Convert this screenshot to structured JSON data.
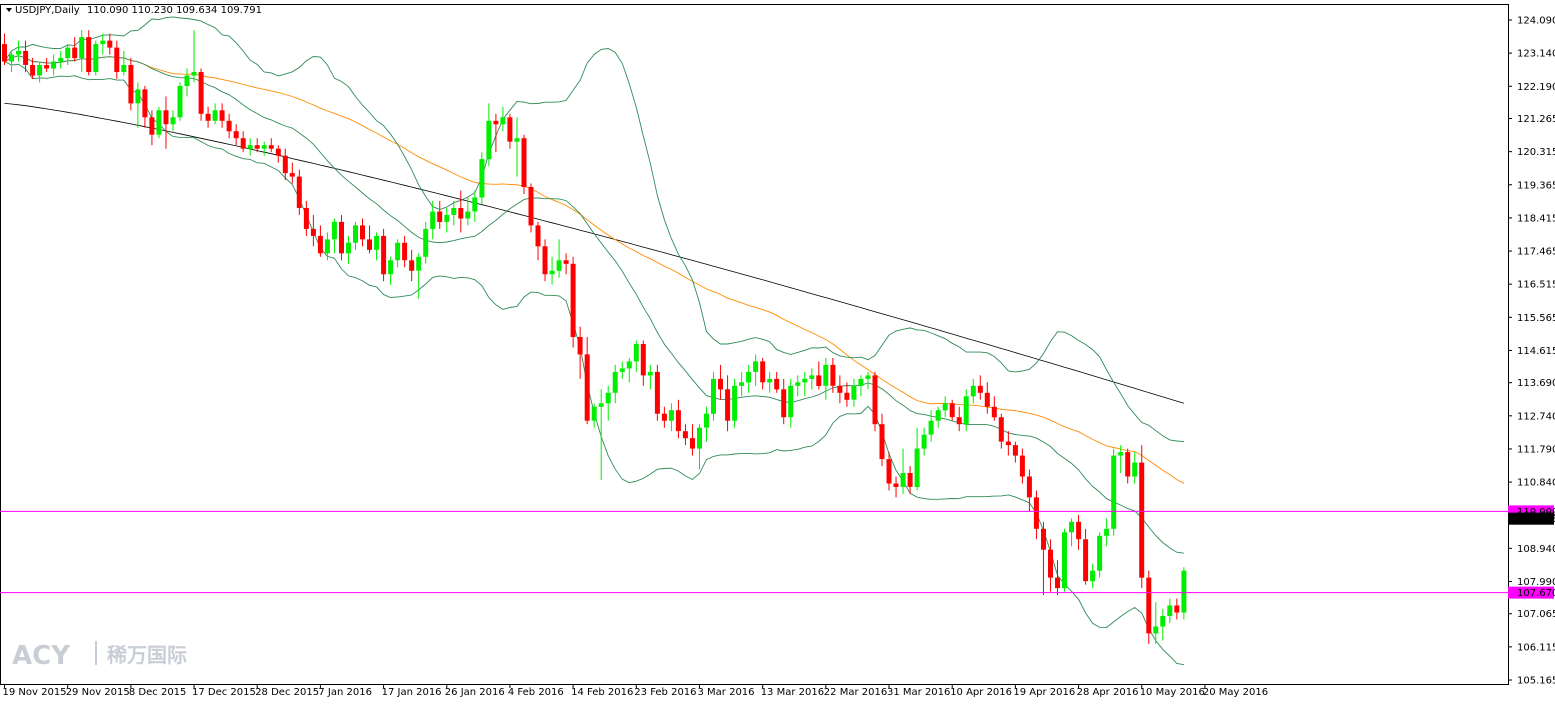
{
  "header": {
    "symbol": "USDJPY,Daily",
    "ohlc": "110.090 110.230 109.634 109.791"
  },
  "watermark": {
    "brand": "ACY",
    "cn": "稀万国际"
  },
  "chart_data": {
    "type": "candlestick",
    "symbol": "USDJPY",
    "timeframe": "Daily",
    "ylim": [
      105.165,
      124.09
    ],
    "y_ticks": [
      "124.090",
      "123.140",
      "122.190",
      "121.265",
      "120.315",
      "119.365",
      "118.415",
      "117.465",
      "116.515",
      "115.565",
      "114.615",
      "113.690",
      "112.740",
      "111.790",
      "110.840",
      "109.890",
      "108.940",
      "107.990",
      "107.065",
      "106.115",
      "105.165"
    ],
    "x_ticks": [
      "19 Nov 2015",
      "29 Nov 2015",
      "8 Dec 2015",
      "17 Dec 2015",
      "28 Dec 2015",
      "7 Jan 2016",
      "17 Jan 2016",
      "26 Jan 2016",
      "4 Feb 2016",
      "14 Feb 2016",
      "23 Feb 2016",
      "3 Mar 2016",
      "13 Mar 2016",
      "22 Mar 2016",
      "31 Mar 2016",
      "10 Apr 2016",
      "19 Apr 2016",
      "28 Apr 2016",
      "10 May 2016",
      "20 May 2016"
    ],
    "x_tick_bar_index": [
      0,
      9,
      18,
      27,
      36,
      45,
      54,
      63,
      72,
      81,
      90,
      99,
      108,
      117,
      126,
      135,
      144,
      153,
      162,
      171
    ],
    "colors": {
      "up": "#00ee00",
      "down": "#ff0000",
      "bands": "#2e8b57",
      "ma50": "#ff8c00",
      "ma200": "#000000",
      "hline": "#ff00ff",
      "price_label": "#000000"
    },
    "horizontal_lines": [
      {
        "value": 110.0,
        "label": "110.000"
      },
      {
        "value": 107.67,
        "label": "107.670"
      }
    ],
    "current_price": {
      "value": 109.791,
      "label": "109.791"
    },
    "candles": [
      {
        "o": 123.4,
        "h": 123.7,
        "l": 122.8,
        "c": 122.9
      },
      {
        "o": 122.9,
        "h": 123.2,
        "l": 122.6,
        "c": 123.1
      },
      {
        "o": 123.1,
        "h": 123.5,
        "l": 122.9,
        "c": 123.2
      },
      {
        "o": 123.2,
        "h": 123.5,
        "l": 122.6,
        "c": 122.8
      },
      {
        "o": 122.8,
        "h": 123.0,
        "l": 122.4,
        "c": 122.5
      },
      {
        "o": 122.5,
        "h": 122.9,
        "l": 122.3,
        "c": 122.8
      },
      {
        "o": 122.8,
        "h": 123.0,
        "l": 122.6,
        "c": 122.7
      },
      {
        "o": 122.7,
        "h": 123.1,
        "l": 122.5,
        "c": 122.9
      },
      {
        "o": 122.9,
        "h": 123.2,
        "l": 122.7,
        "c": 123.0
      },
      {
        "o": 123.0,
        "h": 123.4,
        "l": 122.8,
        "c": 123.3
      },
      {
        "o": 123.3,
        "h": 123.6,
        "l": 122.9,
        "c": 123.0
      },
      {
        "o": 123.0,
        "h": 123.8,
        "l": 122.6,
        "c": 123.6
      },
      {
        "o": 123.6,
        "h": 123.8,
        "l": 122.5,
        "c": 122.6
      },
      {
        "o": 122.6,
        "h": 123.5,
        "l": 122.5,
        "c": 123.4
      },
      {
        "o": 123.4,
        "h": 123.7,
        "l": 123.1,
        "c": 123.5
      },
      {
        "o": 123.5,
        "h": 123.7,
        "l": 123.1,
        "c": 123.3
      },
      {
        "o": 123.3,
        "h": 123.5,
        "l": 122.4,
        "c": 122.6
      },
      {
        "o": 122.6,
        "h": 123.2,
        "l": 122.5,
        "c": 122.8
      },
      {
        "o": 122.8,
        "h": 123.0,
        "l": 121.5,
        "c": 121.7
      },
      {
        "o": 121.7,
        "h": 122.3,
        "l": 121.0,
        "c": 122.1
      },
      {
        "o": 122.1,
        "h": 122.2,
        "l": 121.0,
        "c": 121.3
      },
      {
        "o": 121.3,
        "h": 121.5,
        "l": 120.5,
        "c": 120.8
      },
      {
        "o": 120.8,
        "h": 121.6,
        "l": 120.7,
        "c": 121.5
      },
      {
        "o": 121.5,
        "h": 121.9,
        "l": 120.4,
        "c": 121.1
      },
      {
        "o": 121.1,
        "h": 121.5,
        "l": 120.9,
        "c": 121.3
      },
      {
        "o": 121.3,
        "h": 122.3,
        "l": 121.2,
        "c": 122.2
      },
      {
        "o": 122.2,
        "h": 122.7,
        "l": 121.9,
        "c": 122.5
      },
      {
        "o": 122.5,
        "h": 123.8,
        "l": 122.3,
        "c": 122.6
      },
      {
        "o": 122.6,
        "h": 122.7,
        "l": 121.2,
        "c": 121.4
      },
      {
        "o": 121.4,
        "h": 121.6,
        "l": 121.0,
        "c": 121.2
      },
      {
        "o": 121.2,
        "h": 121.7,
        "l": 121.1,
        "c": 121.5
      },
      {
        "o": 121.5,
        "h": 121.7,
        "l": 121.0,
        "c": 121.2
      },
      {
        "o": 121.2,
        "h": 121.4,
        "l": 120.7,
        "c": 120.9
      },
      {
        "o": 120.9,
        "h": 121.1,
        "l": 120.5,
        "c": 120.7
      },
      {
        "o": 120.7,
        "h": 120.9,
        "l": 120.3,
        "c": 120.4
      },
      {
        "o": 120.4,
        "h": 120.7,
        "l": 120.2,
        "c": 120.5
      },
      {
        "o": 120.5,
        "h": 120.7,
        "l": 120.3,
        "c": 120.4
      },
      {
        "o": 120.4,
        "h": 120.6,
        "l": 120.2,
        "c": 120.5
      },
      {
        "o": 120.5,
        "h": 120.7,
        "l": 120.3,
        "c": 120.4
      },
      {
        "o": 120.4,
        "h": 120.5,
        "l": 120.0,
        "c": 120.2
      },
      {
        "o": 120.2,
        "h": 120.4,
        "l": 119.5,
        "c": 119.7
      },
      {
        "o": 119.7,
        "h": 120.0,
        "l": 119.4,
        "c": 119.6
      },
      {
        "o": 119.6,
        "h": 119.8,
        "l": 118.5,
        "c": 118.7
      },
      {
        "o": 118.7,
        "h": 118.9,
        "l": 117.9,
        "c": 118.1
      },
      {
        "o": 118.1,
        "h": 118.5,
        "l": 117.6,
        "c": 117.9
      },
      {
        "o": 117.9,
        "h": 118.2,
        "l": 117.3,
        "c": 117.4
      },
      {
        "o": 117.4,
        "h": 118.0,
        "l": 117.2,
        "c": 117.8
      },
      {
        "o": 117.8,
        "h": 118.4,
        "l": 117.4,
        "c": 118.3
      },
      {
        "o": 118.3,
        "h": 118.5,
        "l": 117.2,
        "c": 117.4
      },
      {
        "o": 117.4,
        "h": 117.9,
        "l": 117.1,
        "c": 117.7
      },
      {
        "o": 117.7,
        "h": 118.3,
        "l": 117.5,
        "c": 118.2
      },
      {
        "o": 118.2,
        "h": 118.4,
        "l": 117.6,
        "c": 117.8
      },
      {
        "o": 117.8,
        "h": 118.2,
        "l": 117.4,
        "c": 117.5
      },
      {
        "o": 117.5,
        "h": 118.0,
        "l": 117.2,
        "c": 117.9
      },
      {
        "o": 117.9,
        "h": 118.1,
        "l": 116.6,
        "c": 116.8
      },
      {
        "o": 116.8,
        "h": 117.3,
        "l": 116.5,
        "c": 117.2
      },
      {
        "o": 117.2,
        "h": 117.8,
        "l": 117.0,
        "c": 117.7
      },
      {
        "o": 117.7,
        "h": 117.9,
        "l": 117.0,
        "c": 117.2
      },
      {
        "o": 117.2,
        "h": 117.5,
        "l": 116.6,
        "c": 116.9
      },
      {
        "o": 116.9,
        "h": 117.4,
        "l": 116.1,
        "c": 117.3
      },
      {
        "o": 117.3,
        "h": 118.3,
        "l": 117.1,
        "c": 118.1
      },
      {
        "o": 118.1,
        "h": 118.9,
        "l": 117.8,
        "c": 118.6
      },
      {
        "o": 118.6,
        "h": 118.9,
        "l": 118.1,
        "c": 118.3
      },
      {
        "o": 118.3,
        "h": 118.7,
        "l": 118.0,
        "c": 118.5
      },
      {
        "o": 118.5,
        "h": 118.9,
        "l": 118.2,
        "c": 118.7
      },
      {
        "o": 118.7,
        "h": 119.2,
        "l": 118.0,
        "c": 118.4
      },
      {
        "o": 118.4,
        "h": 119.0,
        "l": 118.2,
        "c": 118.6
      },
      {
        "o": 118.6,
        "h": 119.2,
        "l": 118.3,
        "c": 119.0
      },
      {
        "o": 119.0,
        "h": 120.3,
        "l": 118.8,
        "c": 120.1
      },
      {
        "o": 120.1,
        "h": 121.7,
        "l": 119.9,
        "c": 121.2
      },
      {
        "o": 121.2,
        "h": 121.4,
        "l": 120.3,
        "c": 121.1
      },
      {
        "o": 121.1,
        "h": 121.6,
        "l": 120.9,
        "c": 121.3
      },
      {
        "o": 121.3,
        "h": 121.4,
        "l": 120.4,
        "c": 120.6
      },
      {
        "o": 120.6,
        "h": 121.3,
        "l": 119.6,
        "c": 120.7
      },
      {
        "o": 120.7,
        "h": 120.8,
        "l": 119.1,
        "c": 119.3
      },
      {
        "o": 119.3,
        "h": 119.4,
        "l": 118.0,
        "c": 118.2
      },
      {
        "o": 118.2,
        "h": 118.3,
        "l": 117.2,
        "c": 117.6
      },
      {
        "o": 117.6,
        "h": 117.8,
        "l": 116.6,
        "c": 116.8
      },
      {
        "o": 116.8,
        "h": 117.3,
        "l": 116.5,
        "c": 116.9
      },
      {
        "o": 116.9,
        "h": 117.8,
        "l": 116.7,
        "c": 117.2
      },
      {
        "o": 117.2,
        "h": 117.4,
        "l": 116.8,
        "c": 117.1
      },
      {
        "o": 117.1,
        "h": 117.3,
        "l": 114.7,
        "c": 115.0
      },
      {
        "o": 115.0,
        "h": 115.3,
        "l": 113.8,
        "c": 114.5
      },
      {
        "o": 114.5,
        "h": 115.0,
        "l": 112.5,
        "c": 112.6
      },
      {
        "o": 112.6,
        "h": 113.1,
        "l": 112.4,
        "c": 113.0
      },
      {
        "o": 113.0,
        "h": 113.5,
        "l": 110.9,
        "c": 113.1
      },
      {
        "o": 113.1,
        "h": 113.6,
        "l": 112.6,
        "c": 113.4
      },
      {
        "o": 113.4,
        "h": 114.2,
        "l": 113.1,
        "c": 114.0
      },
      {
        "o": 114.0,
        "h": 114.3,
        "l": 113.8,
        "c": 114.1
      },
      {
        "o": 114.1,
        "h": 114.4,
        "l": 113.7,
        "c": 114.3
      },
      {
        "o": 114.3,
        "h": 114.9,
        "l": 114.0,
        "c": 114.8
      },
      {
        "o": 114.8,
        "h": 114.9,
        "l": 113.6,
        "c": 113.9
      },
      {
        "o": 113.9,
        "h": 114.2,
        "l": 113.5,
        "c": 114.0
      },
      {
        "o": 114.0,
        "h": 114.2,
        "l": 112.6,
        "c": 112.8
      },
      {
        "o": 112.8,
        "h": 113.0,
        "l": 112.4,
        "c": 112.6
      },
      {
        "o": 112.6,
        "h": 113.1,
        "l": 112.3,
        "c": 112.9
      },
      {
        "o": 112.9,
        "h": 113.2,
        "l": 112.1,
        "c": 112.3
      },
      {
        "o": 112.3,
        "h": 112.5,
        "l": 111.9,
        "c": 112.1
      },
      {
        "o": 112.1,
        "h": 112.5,
        "l": 111.6,
        "c": 111.8
      },
      {
        "o": 111.8,
        "h": 112.5,
        "l": 111.2,
        "c": 112.4
      },
      {
        "o": 112.4,
        "h": 113.0,
        "l": 112.0,
        "c": 112.8
      },
      {
        "o": 112.8,
        "h": 114.0,
        "l": 112.6,
        "c": 113.8
      },
      {
        "o": 113.8,
        "h": 114.2,
        "l": 113.2,
        "c": 113.5
      },
      {
        "o": 113.5,
        "h": 113.9,
        "l": 112.3,
        "c": 112.6
      },
      {
        "o": 112.6,
        "h": 113.8,
        "l": 112.4,
        "c": 113.6
      },
      {
        "o": 113.6,
        "h": 114.0,
        "l": 113.3,
        "c": 113.7
      },
      {
        "o": 113.7,
        "h": 114.2,
        "l": 113.4,
        "c": 114.0
      },
      {
        "o": 114.0,
        "h": 114.5,
        "l": 113.6,
        "c": 114.3
      },
      {
        "o": 114.3,
        "h": 114.4,
        "l": 113.5,
        "c": 113.7
      },
      {
        "o": 113.7,
        "h": 114.0,
        "l": 113.4,
        "c": 113.8
      },
      {
        "o": 113.8,
        "h": 114.0,
        "l": 113.4,
        "c": 113.5
      },
      {
        "o": 113.5,
        "h": 113.8,
        "l": 112.5,
        "c": 112.7
      },
      {
        "o": 112.7,
        "h": 113.8,
        "l": 112.4,
        "c": 113.6
      },
      {
        "o": 113.6,
        "h": 113.9,
        "l": 113.3,
        "c": 113.7
      },
      {
        "o": 113.7,
        "h": 114.0,
        "l": 113.3,
        "c": 113.8
      },
      {
        "o": 113.8,
        "h": 114.1,
        "l": 113.5,
        "c": 113.9
      },
      {
        "o": 113.9,
        "h": 114.3,
        "l": 113.5,
        "c": 113.6
      },
      {
        "o": 113.6,
        "h": 114.4,
        "l": 113.2,
        "c": 114.2
      },
      {
        "o": 114.2,
        "h": 114.4,
        "l": 113.4,
        "c": 113.6
      },
      {
        "o": 113.6,
        "h": 113.9,
        "l": 113.1,
        "c": 113.4
      },
      {
        "o": 113.4,
        "h": 113.7,
        "l": 113.0,
        "c": 113.2
      },
      {
        "o": 113.2,
        "h": 113.8,
        "l": 113.0,
        "c": 113.6
      },
      {
        "o": 113.6,
        "h": 113.9,
        "l": 113.3,
        "c": 113.8
      },
      {
        "o": 113.8,
        "h": 114.0,
        "l": 113.5,
        "c": 113.9
      },
      {
        "o": 113.9,
        "h": 114.0,
        "l": 112.3,
        "c": 112.5
      },
      {
        "o": 112.5,
        "h": 112.8,
        "l": 111.3,
        "c": 111.5
      },
      {
        "o": 111.5,
        "h": 111.7,
        "l": 110.6,
        "c": 110.8
      },
      {
        "o": 110.8,
        "h": 111.0,
        "l": 110.4,
        "c": 110.7
      },
      {
        "o": 110.7,
        "h": 111.8,
        "l": 110.5,
        "c": 111.1
      },
      {
        "o": 111.1,
        "h": 111.3,
        "l": 110.5,
        "c": 110.7
      },
      {
        "o": 110.7,
        "h": 112.4,
        "l": 110.6,
        "c": 111.8
      },
      {
        "o": 111.8,
        "h": 112.4,
        "l": 111.6,
        "c": 112.2
      },
      {
        "o": 112.2,
        "h": 112.9,
        "l": 112.0,
        "c": 112.6
      },
      {
        "o": 112.6,
        "h": 113.0,
        "l": 112.4,
        "c": 112.9
      },
      {
        "o": 112.9,
        "h": 113.3,
        "l": 112.7,
        "c": 113.1
      },
      {
        "o": 113.1,
        "h": 113.2,
        "l": 112.6,
        "c": 112.7
      },
      {
        "o": 112.7,
        "h": 113.0,
        "l": 112.3,
        "c": 112.5
      },
      {
        "o": 112.5,
        "h": 113.5,
        "l": 112.3,
        "c": 113.3
      },
      {
        "o": 113.3,
        "h": 113.8,
        "l": 113.1,
        "c": 113.6
      },
      {
        "o": 113.6,
        "h": 113.9,
        "l": 113.2,
        "c": 113.4
      },
      {
        "o": 113.4,
        "h": 113.7,
        "l": 112.8,
        "c": 113.0
      },
      {
        "o": 113.0,
        "h": 113.3,
        "l": 112.6,
        "c": 112.7
      },
      {
        "o": 112.7,
        "h": 112.8,
        "l": 111.8,
        "c": 112.0
      },
      {
        "o": 112.0,
        "h": 112.3,
        "l": 111.6,
        "c": 111.9
      },
      {
        "o": 111.9,
        "h": 112.0,
        "l": 111.4,
        "c": 111.6
      },
      {
        "o": 111.6,
        "h": 111.8,
        "l": 110.8,
        "c": 111.0
      },
      {
        "o": 111.0,
        "h": 111.2,
        "l": 110.0,
        "c": 110.4
      },
      {
        "o": 110.4,
        "h": 110.6,
        "l": 109.2,
        "c": 109.5
      },
      {
        "o": 109.5,
        "h": 109.7,
        "l": 107.6,
        "c": 108.9
      },
      {
        "o": 108.9,
        "h": 109.2,
        "l": 107.7,
        "c": 108.1
      },
      {
        "o": 108.1,
        "h": 108.6,
        "l": 107.6,
        "c": 107.8
      },
      {
        "o": 107.8,
        "h": 109.5,
        "l": 107.7,
        "c": 109.4
      },
      {
        "o": 109.4,
        "h": 109.8,
        "l": 109.0,
        "c": 109.7
      },
      {
        "o": 109.7,
        "h": 109.9,
        "l": 108.9,
        "c": 109.2
      },
      {
        "o": 109.2,
        "h": 109.5,
        "l": 107.9,
        "c": 108.0
      },
      {
        "o": 108.0,
        "h": 108.5,
        "l": 107.8,
        "c": 108.3
      },
      {
        "o": 108.3,
        "h": 109.4,
        "l": 108.1,
        "c": 109.3
      },
      {
        "o": 109.3,
        "h": 109.8,
        "l": 109.0,
        "c": 109.5
      },
      {
        "o": 109.5,
        "h": 111.8,
        "l": 109.3,
        "c": 111.6
      },
      {
        "o": 111.6,
        "h": 111.9,
        "l": 111.1,
        "c": 111.7
      },
      {
        "o": 111.7,
        "h": 111.8,
        "l": 110.8,
        "c": 111.0
      },
      {
        "o": 111.0,
        "h": 111.7,
        "l": 110.8,
        "c": 111.4
      },
      {
        "o": 111.4,
        "h": 111.9,
        "l": 107.8,
        "c": 108.1
      },
      {
        "o": 108.1,
        "h": 108.3,
        "l": 106.2,
        "c": 106.5
      },
      {
        "o": 106.5,
        "h": 107.4,
        "l": 106.2,
        "c": 106.7
      },
      {
        "o": 106.7,
        "h": 107.2,
        "l": 106.3,
        "c": 107.0
      },
      {
        "o": 107.0,
        "h": 107.5,
        "l": 106.8,
        "c": 107.3
      },
      {
        "o": 107.3,
        "h": 107.5,
        "l": 106.9,
        "c": 107.1
      },
      {
        "o": 107.1,
        "h": 108.4,
        "l": 106.9,
        "c": 108.3
      }
    ]
  }
}
